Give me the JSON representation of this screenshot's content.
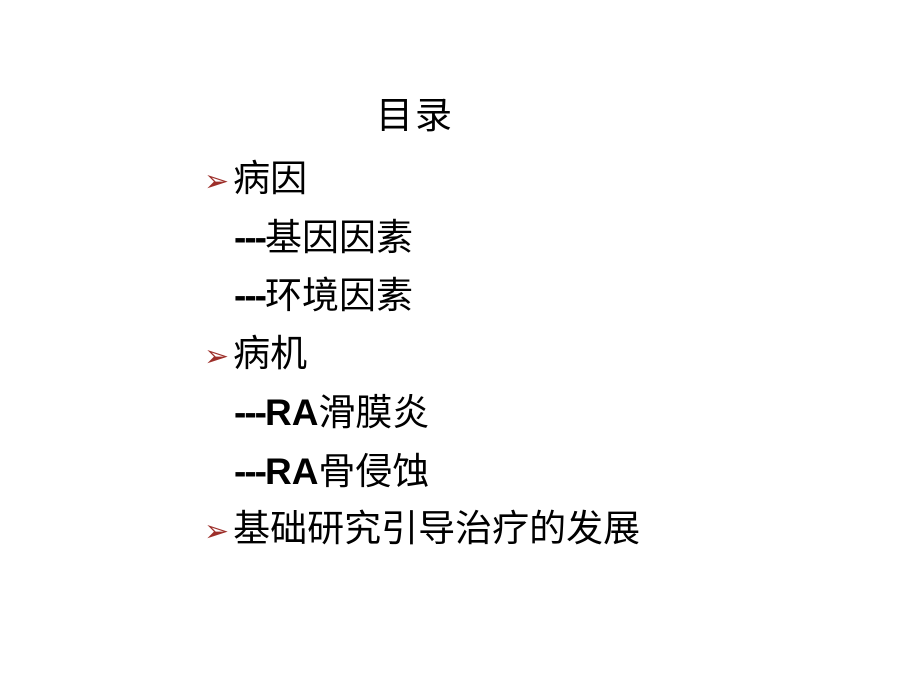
{
  "slide": {
    "title": "目录",
    "bullet_symbol": "➢",
    "bullet_color": "#9d2f2a",
    "text_color": "#000000",
    "background_color": "#ffffff",
    "font_size": 37,
    "dash_prefix": "---",
    "sections": [
      {
        "heading": "病因",
        "subitems": [
          "基因因素",
          "环境因素"
        ]
      },
      {
        "heading": "病机",
        "subitems_prefixed": [
          {
            "en": "RA",
            "cn": "滑膜炎"
          },
          {
            "en": "RA",
            "cn": "骨侵蚀"
          }
        ]
      },
      {
        "heading": "基础研究引导治疗的发展",
        "subitems": []
      }
    ]
  },
  "item1_heading": "病因",
  "item1_sub1": "基因因素",
  "item1_sub2": "环境因素",
  "item2_heading": "病机",
  "item2_sub1_en": "RA",
  "item2_sub1_cn": "滑膜炎",
  "item2_sub2_en": "RA",
  "item2_sub2_cn": "骨侵蚀",
  "item3_heading": "基础研究引导治疗的发展",
  "dash": "---",
  "bullet": "➢"
}
